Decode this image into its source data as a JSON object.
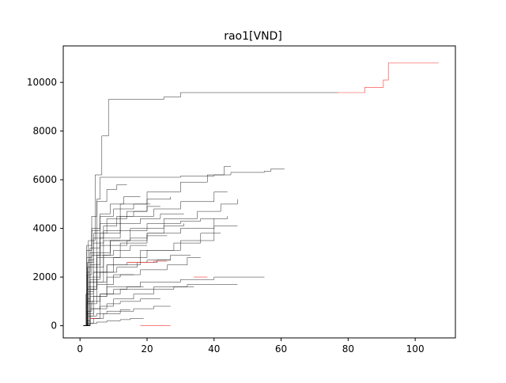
{
  "chart_data": {
    "type": "line",
    "title": "rao1[VND]",
    "xlabel": "",
    "ylabel": "",
    "xlim": [
      -5,
      112
    ],
    "ylim": [
      -500,
      11500
    ],
    "grid": false,
    "legend": "none",
    "xticks": [
      0,
      20,
      40,
      60,
      80,
      100
    ],
    "xtick_labels": [
      "0",
      "20",
      "40",
      "60",
      "80",
      "100"
    ],
    "yticks": [
      0,
      2000,
      4000,
      6000,
      8000,
      10000
    ],
    "ytick_labels": [
      "0",
      "2000",
      "4000",
      "6000",
      "8000",
      "10000"
    ],
    "colors": {
      "main": "#000000",
      "highlight": "#ff0000"
    },
    "series": [
      {
        "color": "#000000",
        "x": [
          1,
          2.5,
          4.5,
          6.5,
          8.5,
          25,
          30,
          77
        ],
        "y": [
          0,
          3500,
          6200,
          7800,
          9300,
          9400,
          9580,
          9580
        ]
      },
      {
        "color": "#ff0000",
        "x": [
          77,
          83,
          85,
          89,
          90.5,
          92,
          107
        ],
        "y": [
          9580,
          9580,
          9800,
          9800,
          10100,
          10800,
          10800
        ]
      },
      {
        "color": "#000000",
        "x": [
          1.5,
          3,
          5,
          6,
          20,
          30,
          40,
          45,
          55,
          57,
          61
        ],
        "y": [
          0,
          3000,
          5200,
          6100,
          6100,
          6150,
          6200,
          6300,
          6350,
          6450,
          6450
        ]
      },
      {
        "color": "#000000",
        "x": [
          1.2,
          3,
          6,
          12,
          20,
          30,
          38,
          43,
          45
        ],
        "y": [
          0,
          2500,
          4200,
          5000,
          5500,
          5900,
          6200,
          6550,
          6550
        ]
      },
      {
        "color": "#000000",
        "x": [
          1.3,
          3,
          7,
          15,
          25,
          35,
          42,
          47
        ],
        "y": [
          0,
          1800,
          3500,
          4000,
          4400,
          4700,
          5000,
          5200
        ]
      },
      {
        "color": "#000000",
        "x": [
          1,
          2,
          5,
          12,
          20,
          30,
          40,
          47
        ],
        "y": [
          0,
          1500,
          2800,
          3400,
          3800,
          4000,
          4100,
          4100
        ]
      },
      {
        "color": "#000000",
        "x": [
          1.1,
          2.5,
          6,
          12,
          22,
          30,
          40,
          44
        ],
        "y": [
          0,
          2000,
          3800,
          4500,
          4800,
          5100,
          5500,
          5500
        ]
      },
      {
        "color": "#000000",
        "x": [
          1.4,
          3,
          8,
          18,
          30,
          40,
          44
        ],
        "y": [
          0,
          1200,
          2500,
          3100,
          3500,
          4400,
          4500
        ]
      },
      {
        "color": "#000000",
        "x": [
          1,
          2,
          4,
          10,
          20,
          28,
          36,
          42
        ],
        "y": [
          0,
          1000,
          2200,
          2800,
          3100,
          3400,
          3800,
          3800
        ]
      },
      {
        "color": "#000000",
        "x": [
          1.2,
          2,
          4,
          8,
          18,
          30,
          40,
          55
        ],
        "y": [
          0,
          500,
          1200,
          1600,
          1800,
          1900,
          2000,
          2000
        ]
      },
      {
        "color": "#000000",
        "x": [
          1.5,
          3,
          6,
          12,
          22,
          32,
          40,
          47
        ],
        "y": [
          0,
          700,
          1300,
          1500,
          1600,
          1700,
          1700,
          1700
        ]
      },
      {
        "color": "#000000",
        "x": [
          1.3,
          2,
          5,
          10,
          18,
          26,
          32,
          36
        ],
        "y": [
          0,
          900,
          1700,
          2100,
          2300,
          2500,
          2800,
          2800
        ]
      },
      {
        "color": "#000000",
        "x": [
          1,
          1.8,
          4,
          8,
          14,
          20,
          27,
          33
        ],
        "y": [
          0,
          1300,
          2200,
          2500,
          2600,
          2700,
          2900,
          2900
        ]
      },
      {
        "color": "#000000",
        "x": [
          1.6,
          3,
          6,
          10,
          16,
          22,
          28,
          34
        ],
        "y": [
          0,
          300,
          800,
          1100,
          1300,
          1500,
          1600,
          1600
        ]
      },
      {
        "color": "#000000",
        "x": [
          1.2,
          2,
          3,
          6,
          12,
          20,
          30,
          36,
          40
        ],
        "y": [
          0,
          2200,
          3200,
          3600,
          3900,
          4200,
          4300,
          4400,
          4400
        ]
      },
      {
        "color": "#000000",
        "x": [
          1.1,
          2.2,
          4,
          8,
          14,
          20,
          27
        ],
        "y": [
          0,
          2600,
          3800,
          4400,
          4700,
          5200,
          5300
        ]
      },
      {
        "color": "#000000",
        "x": [
          1.4,
          2.5,
          5,
          9,
          15,
          20,
          25,
          31
        ],
        "y": [
          0,
          1600,
          3000,
          3500,
          3600,
          3800,
          4100,
          4200
        ]
      },
      {
        "color": "#000000",
        "x": [
          1,
          2,
          3.5,
          6,
          10,
          16,
          21
        ],
        "y": [
          0,
          2800,
          3900,
          4500,
          4800,
          5000,
          5000
        ]
      },
      {
        "color": "#000000",
        "x": [
          1.3,
          2.5,
          5,
          9,
          14,
          20,
          26
        ],
        "y": [
          0,
          1800,
          2900,
          3300,
          3500,
          3700,
          3700
        ]
      },
      {
        "color": "#000000",
        "x": [
          1.5,
          2.5,
          4,
          8,
          12,
          18,
          24
        ],
        "y": [
          0,
          400,
          700,
          900,
          1000,
          1100,
          1100
        ]
      },
      {
        "color": "#000000",
        "x": [
          1.1,
          2,
          3,
          6,
          11,
          17,
          23,
          27
        ],
        "y": [
          0,
          1100,
          1900,
          2200,
          2400,
          2600,
          2700,
          2700
        ]
      },
      {
        "color": "#000000",
        "x": [
          1.2,
          2,
          4,
          7,
          12,
          16,
          22,
          27
        ],
        "y": [
          0,
          100,
          300,
          500,
          600,
          700,
          800,
          800
        ]
      },
      {
        "color": "#000000",
        "x": [
          1,
          2.2,
          4,
          7,
          12,
          18,
          24,
          31
        ],
        "y": [
          0,
          2400,
          3400,
          3900,
          4200,
          4400,
          4600,
          4600
        ]
      },
      {
        "color": "#000000",
        "x": [
          1.6,
          2.5,
          4,
          7,
          10,
          15,
          20
        ],
        "y": [
          0,
          1400,
          2400,
          2900,
          3100,
          3300,
          3300
        ]
      },
      {
        "color": "#000000",
        "x": [
          1.4,
          2.2,
          3.5,
          6,
          10,
          14,
          19
        ],
        "y": [
          0,
          600,
          1000,
          1300,
          1500,
          1600,
          1600
        ]
      },
      {
        "color": "#000000",
        "x": [
          1.2,
          2,
          3.5,
          6,
          9,
          13,
          18
        ],
        "y": [
          0,
          3100,
          4000,
          4600,
          5000,
          5300,
          5300
        ]
      },
      {
        "color": "#000000",
        "x": [
          1.3,
          2,
          3,
          5,
          8,
          12,
          15
        ],
        "y": [
          0,
          200,
          400,
          500,
          600,
          650,
          650
        ]
      },
      {
        "color": "#000000",
        "x": [
          1,
          2,
          3.5,
          5,
          8,
          11,
          14
        ],
        "y": [
          0,
          3300,
          4500,
          5100,
          5600,
          5800,
          5800
        ]
      },
      {
        "color": "#000000",
        "x": [
          1.5,
          2.2,
          3.5,
          6,
          9,
          12
        ],
        "y": [
          0,
          2100,
          2900,
          3300,
          3500,
          3500
        ]
      },
      {
        "color": "#000000",
        "x": [
          1.1,
          2,
          3,
          5,
          8,
          12,
          16
        ],
        "y": [
          0,
          1000,
          1500,
          1800,
          2000,
          2100,
          2100
        ]
      },
      {
        "color": "#000000",
        "x": [
          1.2,
          2,
          3,
          5,
          8,
          12,
          15,
          19
        ],
        "y": [
          0,
          50,
          100,
          150,
          200,
          250,
          300,
          300
        ]
      },
      {
        "color": "#000000",
        "x": [
          1.4,
          2.5,
          4,
          7,
          11,
          16,
          20,
          24
        ],
        "y": [
          0,
          2700,
          3600,
          4100,
          4500,
          4700,
          4900,
          4900
        ]
      },
      {
        "color": "#ff0000",
        "x": [
          14,
          18,
          22,
          26
        ],
        "y": [
          2600,
          2600,
          2650,
          2650
        ]
      },
      {
        "color": "#ff0000",
        "x": [
          18,
          23,
          27
        ],
        "y": [
          0,
          0,
          0
        ]
      },
      {
        "color": "#ff0000",
        "x": [
          34,
          38
        ],
        "y": [
          2000,
          2000
        ]
      },
      {
        "color": "#ff0000",
        "x": [
          3,
          5
        ],
        "y": [
          300,
          300
        ]
      }
    ]
  }
}
